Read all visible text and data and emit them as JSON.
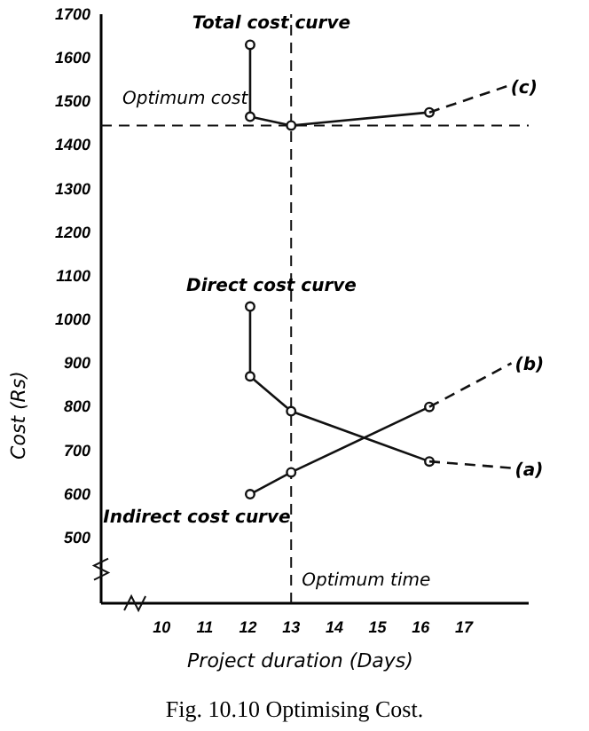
{
  "chart_data": {
    "type": "line",
    "xlabel": "Project duration (Days)",
    "ylabel": "Cost (Rs)",
    "xlim": [
      8.6,
      18.5
    ],
    "xticks": [
      10,
      11,
      12,
      13,
      14,
      15,
      16,
      17
    ],
    "ylim": [
      350,
      1700
    ],
    "yticks": [
      500,
      600,
      700,
      800,
      900,
      1000,
      1100,
      1200,
      1300,
      1400,
      1500,
      1600,
      1700
    ],
    "marker": "circle",
    "grid": false,
    "series": [
      {
        "name": "Total cost curve",
        "color": "#111111",
        "x": [
          12.05,
          12.05,
          13,
          16.2
        ],
        "values": [
          1630,
          1465,
          1445,
          1475
        ]
      },
      {
        "name": "(c)",
        "color": "#111111",
        "x": [
          16.2,
          18.0
        ],
        "values": [
          1475,
          1535
        ],
        "line_style": "dashed",
        "marker": "none"
      },
      {
        "name": "Direct cost curve",
        "color": "#111111",
        "x": [
          12.05,
          12.05,
          13,
          16.2
        ],
        "values": [
          1030,
          870,
          790,
          675
        ]
      },
      {
        "name": "(a)",
        "color": "#111111",
        "x": [
          16.2,
          18.1
        ],
        "values": [
          675,
          660
        ],
        "line_style": "dashed",
        "marker": "none"
      },
      {
        "name": "Indirect cost curve",
        "color": "#111111",
        "x": [
          12.05,
          13,
          16.2
        ],
        "values": [
          600,
          650,
          800
        ]
      },
      {
        "name": "(b)",
        "color": "#111111",
        "x": [
          16.2,
          18.1
        ],
        "values": [
          800,
          900
        ],
        "line_style": "dashed",
        "marker": "none"
      }
    ],
    "ref_lines": [
      {
        "axis": "y",
        "value": 1445,
        "label": "Optimum cost",
        "line_style": "dashed"
      },
      {
        "axis": "x",
        "value": 13,
        "label": "Optimum time",
        "line_style": "dashed"
      }
    ],
    "annotations": [
      "Fig. 10.10 Optimising Cost."
    ]
  }
}
